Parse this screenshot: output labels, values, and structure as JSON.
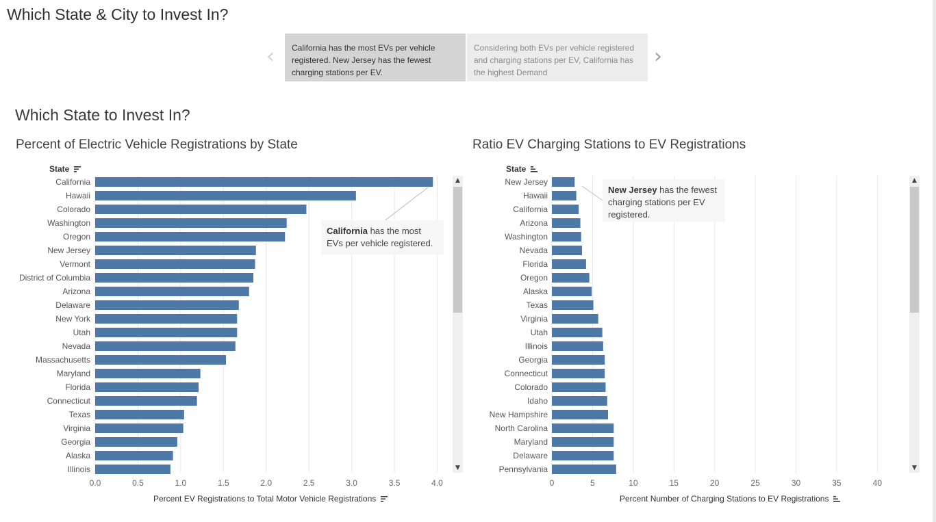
{
  "story_title": "Which State & City to Invest In?",
  "story_points": [
    {
      "text": "California has the most EVs per vehicle registered.  New Jersey has the fewest charging stations per EV.",
      "active": true
    },
    {
      "text": "Considering both EVs per vehicle registered and charging stations per EV, California has the highest Demand",
      "active": false
    }
  ],
  "nav": {
    "prev": "‹",
    "next": "›"
  },
  "section_title": "Which State to Invest In?",
  "scroll": {
    "up": "▲",
    "down": "▼"
  },
  "colors": {
    "bar": "#4e79a7",
    "grid": "#e6e6e6",
    "axis_text": "#666666"
  },
  "chart_data": [
    {
      "type": "bar",
      "orientation": "horizontal",
      "title": "Percent of Electric Vehicle Registrations by State",
      "row_header": "State",
      "xlabel": "Percent EV Registrations to Total Motor Vehicle Registrations",
      "xlim": [
        0,
        4.1
      ],
      "xticks": [
        0,
        0.5,
        1.0,
        1.5,
        2.0,
        2.5,
        3.0,
        3.5,
        4.0
      ],
      "xtick_labels": [
        "0.0",
        "0.5",
        "1.0",
        "1.5",
        "2.0",
        "2.5",
        "3.0",
        "3.5",
        "4.0"
      ],
      "grid": true,
      "categories": [
        "California",
        "Hawaii",
        "Colorado",
        "Washington",
        "Oregon",
        "New Jersey",
        "Vermont",
        "District of Columbia",
        "Arizona",
        "Delaware",
        "New York",
        "Utah",
        "Nevada",
        "Massachusetts",
        "Maryland",
        "Florida",
        "Connecticut",
        "Texas",
        "Virginia",
        "Georgia",
        "Alaska",
        "Illinois"
      ],
      "values": [
        3.95,
        3.05,
        2.47,
        2.24,
        2.22,
        1.88,
        1.87,
        1.85,
        1.8,
        1.68,
        1.66,
        1.66,
        1.64,
        1.53,
        1.23,
        1.21,
        1.19,
        1.04,
        1.03,
        0.96,
        0.91,
        0.88
      ],
      "annotation": {
        "bold": "California",
        "text": " has the most EVs per vehicle registered."
      }
    },
    {
      "type": "bar",
      "orientation": "horizontal",
      "title": "Ratio EV Charging Stations to EV Registrations",
      "row_header": "State",
      "xlabel": "Percent Number of Charging Stations to EV Registrations",
      "xlim": [
        0,
        43
      ],
      "xticks": [
        0,
        5,
        10,
        15,
        20,
        25,
        30,
        35,
        40
      ],
      "xtick_labels": [
        "0",
        "5",
        "10",
        "15",
        "20",
        "25",
        "30",
        "35",
        "40"
      ],
      "grid": true,
      "categories": [
        "New Jersey",
        "Hawaii",
        "California",
        "Arizona",
        "Washington",
        "Nevada",
        "Florida",
        "Oregon",
        "Alaska",
        "Texas",
        "Virginia",
        "Utah",
        "Illinois",
        "Georgia",
        "Connecticut",
        "Colorado",
        "Idaho",
        "New Hampshire",
        "North Carolina",
        "Maryland",
        "Delaware",
        "Pennsylvania"
      ],
      "values": [
        2.8,
        3.0,
        3.3,
        3.5,
        3.6,
        3.7,
        4.2,
        4.6,
        4.9,
        5.1,
        5.7,
        6.2,
        6.3,
        6.5,
        6.5,
        6.6,
        6.8,
        6.9,
        7.6,
        7.6,
        7.6,
        7.9
      ],
      "annotation": {
        "bold": "New Jersey",
        "text": " has the fewest charging stations per EV registered."
      }
    }
  ]
}
